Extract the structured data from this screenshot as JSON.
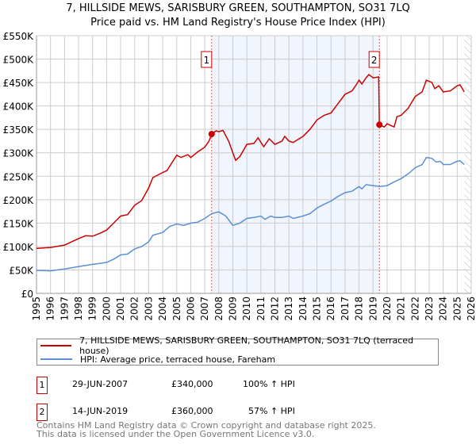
{
  "chart_data": {
    "type": "line",
    "title": "7, HILLSIDE MEWS, SARISBURY GREEN, SOUTHAMPTON, SO31 7LQ",
    "subtitle": "Price paid vs. HM Land Registry's House Price Index (HPI)",
    "xlim": [
      1995,
      2026
    ],
    "ylim": [
      0,
      550000
    ],
    "x_ticks": [
      "1995",
      "1996",
      "1997",
      "1998",
      "1999",
      "2000",
      "2001",
      "2002",
      "2003",
      "2004",
      "2005",
      "2006",
      "2007",
      "2008",
      "2009",
      "2010",
      "2011",
      "2012",
      "2013",
      "2014",
      "2015",
      "2016",
      "2017",
      "2018",
      "2019",
      "2020",
      "2021",
      "2022",
      "2023",
      "2024",
      "2025",
      "2026"
    ],
    "y_ticks": [
      {
        "v": 0,
        "label": "£0"
      },
      {
        "v": 50000,
        "label": "£50K"
      },
      {
        "v": 100000,
        "label": "£100K"
      },
      {
        "v": 150000,
        "label": "£150K"
      },
      {
        "v": 200000,
        "label": "£200K"
      },
      {
        "v": 250000,
        "label": "£250K"
      },
      {
        "v": 300000,
        "label": "£300K"
      },
      {
        "v": 350000,
        "label": "£350K"
      },
      {
        "v": 400000,
        "label": "£400K"
      },
      {
        "v": 450000,
        "label": "£450K"
      },
      {
        "v": 500000,
        "label": "£500K"
      },
      {
        "v": 550000,
        "label": "£550K"
      }
    ],
    "grid": true,
    "shaded_range": [
      2007.49,
      2019.45
    ],
    "hatched_from": 2025.5,
    "series": [
      {
        "name": "7, HILLSIDE MEWS, SARISBURY GREEN, SOUTHAMPTON, SO31 7LQ (terraced house)",
        "color": "#cc0000",
        "x": [
          1995,
          1996,
          1997,
          1998,
          1998.5,
          1999,
          1999.5,
          2000,
          2000.5,
          2001,
          2001.5,
          2002,
          2002.5,
          2003,
          2003.3,
          2004,
          2004.3,
          2005,
          2005.3,
          2005.8,
          2006,
          2006.5,
          2007,
          2007.3,
          2007.49,
          2007.8,
          2008,
          2008.3,
          2008.7,
          2009,
          2009.2,
          2009.5,
          2010,
          2010.5,
          2010.8,
          2011.2,
          2011.6,
          2012,
          2012.5,
          2012.7,
          2013,
          2013.3,
          2014,
          2014.5,
          2015,
          2015.5,
          2016,
          2016.5,
          2017,
          2017.5,
          2017.8,
          2018,
          2018.2,
          2018.5,
          2018.7,
          2019,
          2019.4,
          2019.45,
          2019.8,
          2020,
          2020.5,
          2020.7,
          2021,
          2021.5,
          2022,
          2022.5,
          2022.8,
          2023.2,
          2023.4,
          2023.7,
          2024,
          2024.5,
          2025,
          2025.2,
          2025.5
        ],
        "y": [
          96000,
          98000,
          103000,
          117000,
          123000,
          122000,
          128000,
          135000,
          150000,
          165000,
          168000,
          188000,
          198000,
          225000,
          247000,
          258000,
          262000,
          295000,
          290000,
          296000,
          290000,
          302000,
          312000,
          325000,
          340000,
          347000,
          345000,
          348000,
          325000,
          300000,
          284000,
          292000,
          318000,
          320000,
          332000,
          313000,
          330000,
          318000,
          325000,
          335000,
          325000,
          322000,
          335000,
          350000,
          370000,
          380000,
          385000,
          405000,
          425000,
          432000,
          445000,
          455000,
          447000,
          460000,
          467000,
          460000,
          462000,
          360000,
          355000,
          362000,
          355000,
          377000,
          380000,
          395000,
          420000,
          430000,
          455000,
          450000,
          437000,
          443000,
          430000,
          432000,
          443000,
          445000,
          430000
        ]
      },
      {
        "name": "HPI: Average price, terraced house, Fareham",
        "color": "#5b8fd4",
        "x": [
          1995,
          1996,
          1997,
          1998,
          1999,
          2000,
          2000.5,
          2001,
          2001.5,
          2002,
          2002.5,
          2003,
          2003.3,
          2004,
          2004.5,
          2005,
          2005.5,
          2006,
          2006.5,
          2007,
          2007.5,
          2008,
          2008.5,
          2009,
          2009.5,
          2010,
          2010.5,
          2011,
          2011.3,
          2011.7,
          2012,
          2012.5,
          2013,
          2013.3,
          2014,
          2014.5,
          2015,
          2015.5,
          2016,
          2016.5,
          2017,
          2017.5,
          2018,
          2018.2,
          2018.5,
          2019,
          2019.5,
          2020,
          2020.5,
          2021,
          2021.5,
          2022,
          2022.5,
          2022.8,
          2023.2,
          2023.5,
          2023.8,
          2024,
          2024.5,
          2025,
          2025.2,
          2025.5
        ],
        "y": [
          49000,
          48000,
          52000,
          57000,
          62000,
          66000,
          73000,
          82000,
          84000,
          95000,
          100000,
          110000,
          124000,
          130000,
          143000,
          148000,
          145000,
          150000,
          152000,
          160000,
          170000,
          174000,
          165000,
          145000,
          150000,
          160000,
          162000,
          165000,
          158000,
          165000,
          162000,
          162000,
          165000,
          160000,
          165000,
          170000,
          182000,
          190000,
          197000,
          207000,
          215000,
          218000,
          228000,
          223000,
          232000,
          230000,
          228000,
          230000,
          238000,
          245000,
          255000,
          268000,
          275000,
          290000,
          288000,
          280000,
          282000,
          275000,
          275000,
          282000,
          283000,
          275000
        ]
      }
    ],
    "markers": [
      {
        "label": "1",
        "x": 2007.49,
        "y": 340000
      },
      {
        "label": "2",
        "x": 2019.45,
        "y": 360000
      }
    ]
  },
  "transactions": [
    {
      "num": "1",
      "date": "29-JUN-2007",
      "price": "£340,000",
      "hpi": "100% ↑ HPI"
    },
    {
      "num": "2",
      "date": "14-JUN-2019",
      "price": "£360,000",
      "hpi": "57% ↑ HPI"
    }
  ],
  "footer": {
    "line1": "Contains HM Land Registry data © Crown copyright and database right 2025.",
    "line2": "This data is licensed under the Open Government Licence v3.0."
  }
}
